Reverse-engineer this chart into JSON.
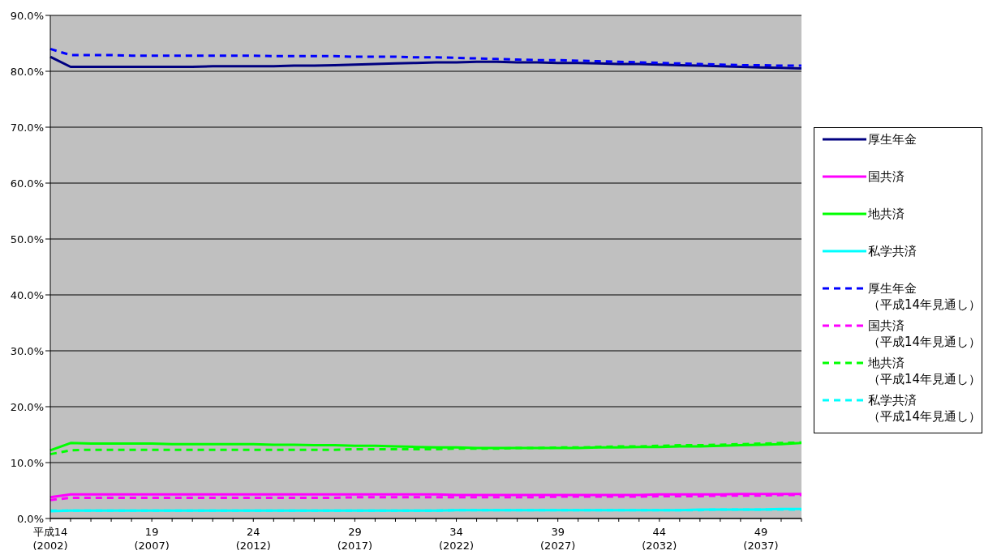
{
  "chart_data": {
    "type": "line",
    "categories": [
      "平成14\n(2002)",
      null,
      null,
      null,
      null,
      "19\n(2007)",
      null,
      null,
      null,
      null,
      "24\n(2012)",
      null,
      null,
      null,
      null,
      "29\n(2017)",
      null,
      null,
      null,
      null,
      "34\n(2022)",
      null,
      null,
      null,
      null,
      "39\n(2027)",
      null,
      null,
      null,
      null,
      "44\n(2032)",
      null,
      null,
      null,
      null,
      "49\n(2037)",
      null,
      null
    ],
    "series": [
      {
        "name": "厚生年金",
        "color": "#000080",
        "line_style": "solid",
        "values": [
          82.6,
          80.8,
          80.8,
          80.8,
          80.8,
          80.8,
          80.8,
          80.8,
          80.9,
          80.9,
          80.9,
          80.9,
          81.0,
          81.0,
          81.1,
          81.2,
          81.3,
          81.4,
          81.5,
          81.6,
          81.6,
          81.7,
          81.7,
          81.6,
          81.6,
          81.5,
          81.5,
          81.4,
          81.3,
          81.3,
          81.2,
          81.1,
          81.0,
          80.9,
          80.8,
          80.7,
          80.6,
          80.5
        ]
      },
      {
        "name": "国共済",
        "color": "#ff00ff",
        "line_style": "solid",
        "values": [
          3.8,
          4.3,
          4.3,
          4.3,
          4.3,
          4.3,
          4.3,
          4.3,
          4.3,
          4.3,
          4.3,
          4.3,
          4.3,
          4.3,
          4.3,
          4.3,
          4.3,
          4.3,
          4.3,
          4.3,
          4.2,
          4.2,
          4.2,
          4.2,
          4.2,
          4.2,
          4.2,
          4.2,
          4.2,
          4.2,
          4.3,
          4.3,
          4.3,
          4.3,
          4.4,
          4.4,
          4.4,
          4.4
        ]
      },
      {
        "name": "地共済",
        "color": "#00ff00",
        "line_style": "solid",
        "values": [
          12.2,
          13.5,
          13.4,
          13.4,
          13.4,
          13.4,
          13.3,
          13.3,
          13.3,
          13.3,
          13.3,
          13.2,
          13.2,
          13.1,
          13.1,
          13.0,
          13.0,
          12.9,
          12.8,
          12.7,
          12.7,
          12.6,
          12.6,
          12.6,
          12.6,
          12.6,
          12.6,
          12.7,
          12.7,
          12.8,
          12.8,
          12.9,
          12.9,
          13.0,
          13.1,
          13.2,
          13.3,
          13.5
        ]
      },
      {
        "name": "私学共済",
        "color": "#00ffff",
        "line_style": "solid",
        "values": [
          1.3,
          1.4,
          1.4,
          1.4,
          1.4,
          1.4,
          1.4,
          1.4,
          1.4,
          1.4,
          1.4,
          1.4,
          1.4,
          1.4,
          1.4,
          1.4,
          1.4,
          1.4,
          1.4,
          1.4,
          1.5,
          1.5,
          1.5,
          1.5,
          1.5,
          1.5,
          1.5,
          1.5,
          1.5,
          1.5,
          1.5,
          1.5,
          1.6,
          1.6,
          1.6,
          1.6,
          1.7,
          1.7
        ]
      },
      {
        "name": "厚生年金（平成14年見通し）",
        "color": "#0000ff",
        "line_style": "dashed",
        "values": [
          84.0,
          82.9,
          82.9,
          82.9,
          82.8,
          82.8,
          82.8,
          82.8,
          82.8,
          82.8,
          82.8,
          82.7,
          82.7,
          82.7,
          82.7,
          82.6,
          82.6,
          82.6,
          82.5,
          82.5,
          82.4,
          82.3,
          82.2,
          82.1,
          82.0,
          82.0,
          81.9,
          81.8,
          81.7,
          81.6,
          81.5,
          81.4,
          81.3,
          81.2,
          81.1,
          81.1,
          81.0,
          81.0
        ]
      },
      {
        "name": "国共済（平成14年見通し）",
        "color": "#ff00ff",
        "line_style": "dashed",
        "values": [
          3.3,
          3.7,
          3.7,
          3.7,
          3.7,
          3.7,
          3.7,
          3.7,
          3.7,
          3.7,
          3.7,
          3.7,
          3.7,
          3.7,
          3.7,
          3.8,
          3.8,
          3.8,
          3.8,
          3.8,
          3.8,
          3.8,
          3.8,
          3.8,
          3.8,
          3.9,
          3.9,
          3.9,
          3.9,
          3.9,
          4.0,
          4.0,
          4.0,
          4.1,
          4.1,
          4.1,
          4.2,
          4.2
        ]
      },
      {
        "name": "地共済（平成14年見通し）",
        "color": "#00ff00",
        "line_style": "dashed",
        "values": [
          11.5,
          12.2,
          12.3,
          12.3,
          12.3,
          12.3,
          12.3,
          12.3,
          12.3,
          12.3,
          12.3,
          12.3,
          12.3,
          12.3,
          12.3,
          12.4,
          12.4,
          12.4,
          12.4,
          12.4,
          12.5,
          12.5,
          12.5,
          12.6,
          12.6,
          12.7,
          12.7,
          12.8,
          12.9,
          12.9,
          13.0,
          13.1,
          13.1,
          13.2,
          13.3,
          13.4,
          13.5,
          13.6
        ]
      },
      {
        "name": "私学共済（平成14年見通し）",
        "color": "#00ffff",
        "line_style": "dashed",
        "values": [
          1.4,
          1.4,
          1.4,
          1.4,
          1.4,
          1.4,
          1.4,
          1.4,
          1.4,
          1.4,
          1.4,
          1.4,
          1.4,
          1.4,
          1.4,
          1.4,
          1.4,
          1.4,
          1.4,
          1.4,
          1.5,
          1.5,
          1.5,
          1.5,
          1.5,
          1.5,
          1.5,
          1.5,
          1.5,
          1.5,
          1.5,
          1.5,
          1.5,
          1.6,
          1.6,
          1.6,
          1.6,
          1.6
        ]
      }
    ],
    "ylim": [
      0,
      90
    ],
    "yticks": [
      {
        "value": 0,
        "label": "0.0%"
      },
      {
        "value": 10,
        "label": "10.0%"
      },
      {
        "value": 20,
        "label": "20.0%"
      },
      {
        "value": 30,
        "label": "30.0%"
      },
      {
        "value": 40,
        "label": "40.0%"
      },
      {
        "value": 50,
        "label": "50.0%"
      },
      {
        "value": 60,
        "label": "60.0%"
      },
      {
        "value": 70,
        "label": "70.0%"
      },
      {
        "value": 80,
        "label": "80.0%"
      },
      {
        "value": 90,
        "label": "90.0%"
      }
    ],
    "grid": "y",
    "legend": "right",
    "marker": "none"
  }
}
